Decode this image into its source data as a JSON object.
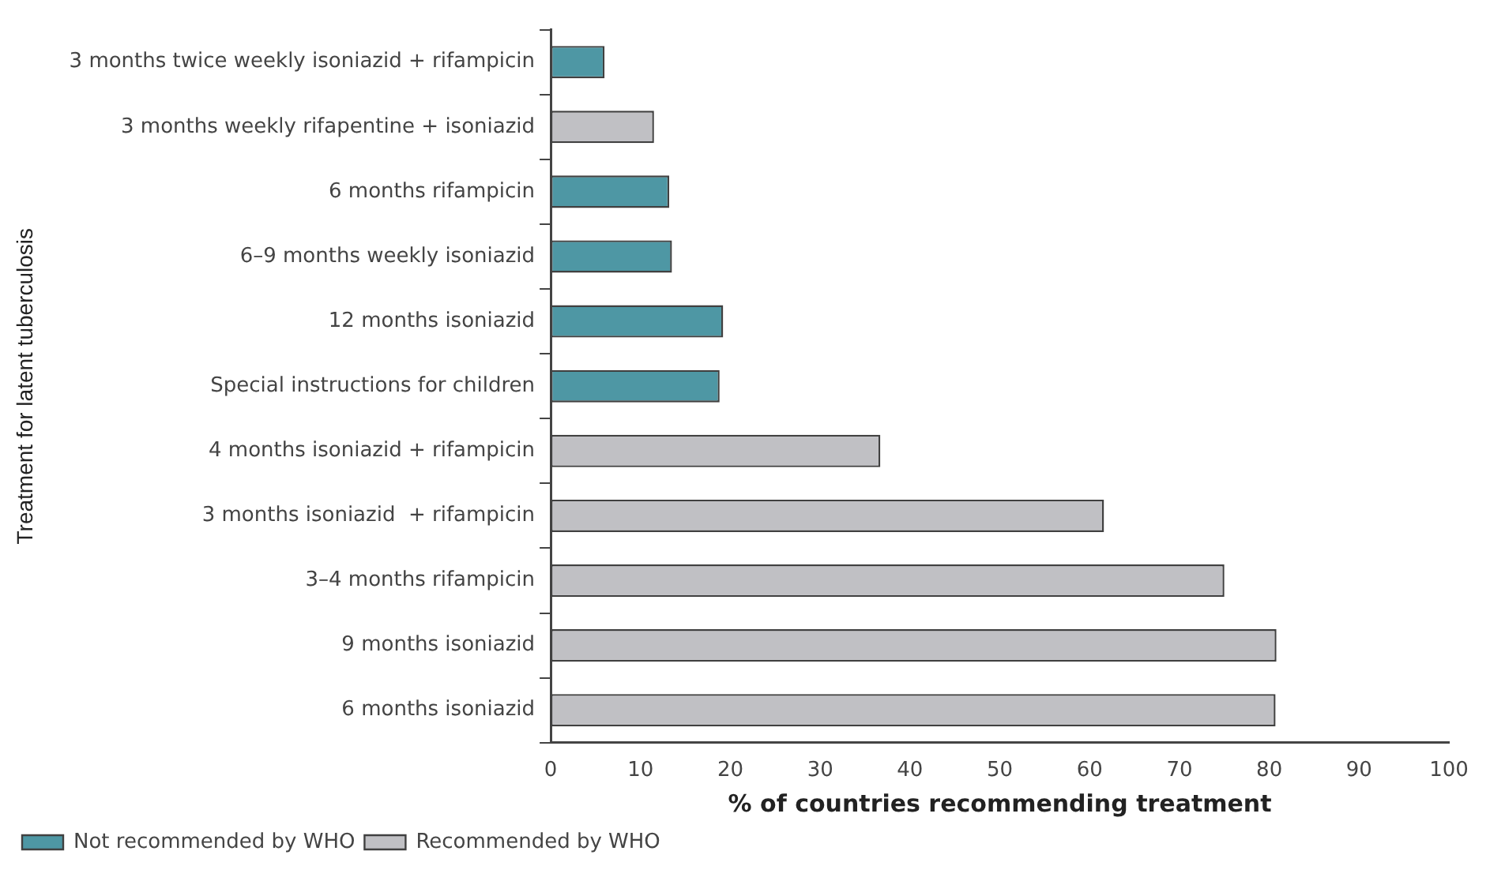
{
  "chart_data": {
    "type": "bar",
    "orientation": "horizontal",
    "xlabel": "% of countries recommending treatment",
    "ylabel": "Treatment for latent tuberculosis",
    "categories": [
      "3 months twice weekly isoniazid + rifampicin",
      "3 months weekly rifapentine + isoniazid",
      "6 months rifampicin",
      "6–9 months weekly isoniazid",
      "12 months isoniazid",
      "Special instructions for children",
      "4 months isoniazid + rifampicin",
      "3 months isoniazid  + rifampicin",
      "3–4 months rifampicin",
      "9 months isoniazid",
      "6 months isoniazid"
    ],
    "series": [
      {
        "name": "Not recommended by WHO",
        "color": "#4e97a4",
        "values": [
          6,
          null,
          13.2,
          13.5,
          19.2,
          18.8,
          null,
          null,
          null,
          null,
          null
        ]
      },
      {
        "name": "Recommended by WHO",
        "color": "#c0c0c4",
        "values": [
          null,
          11.5,
          null,
          null,
          null,
          null,
          36.7,
          61.6,
          75,
          80.8,
          80.7
        ]
      }
    ],
    "xlim": [
      0,
      100
    ],
    "xticks": [
      0,
      10,
      20,
      30,
      40,
      50,
      60,
      70,
      80,
      90,
      100
    ],
    "grid": false,
    "legend": "bottom left"
  }
}
